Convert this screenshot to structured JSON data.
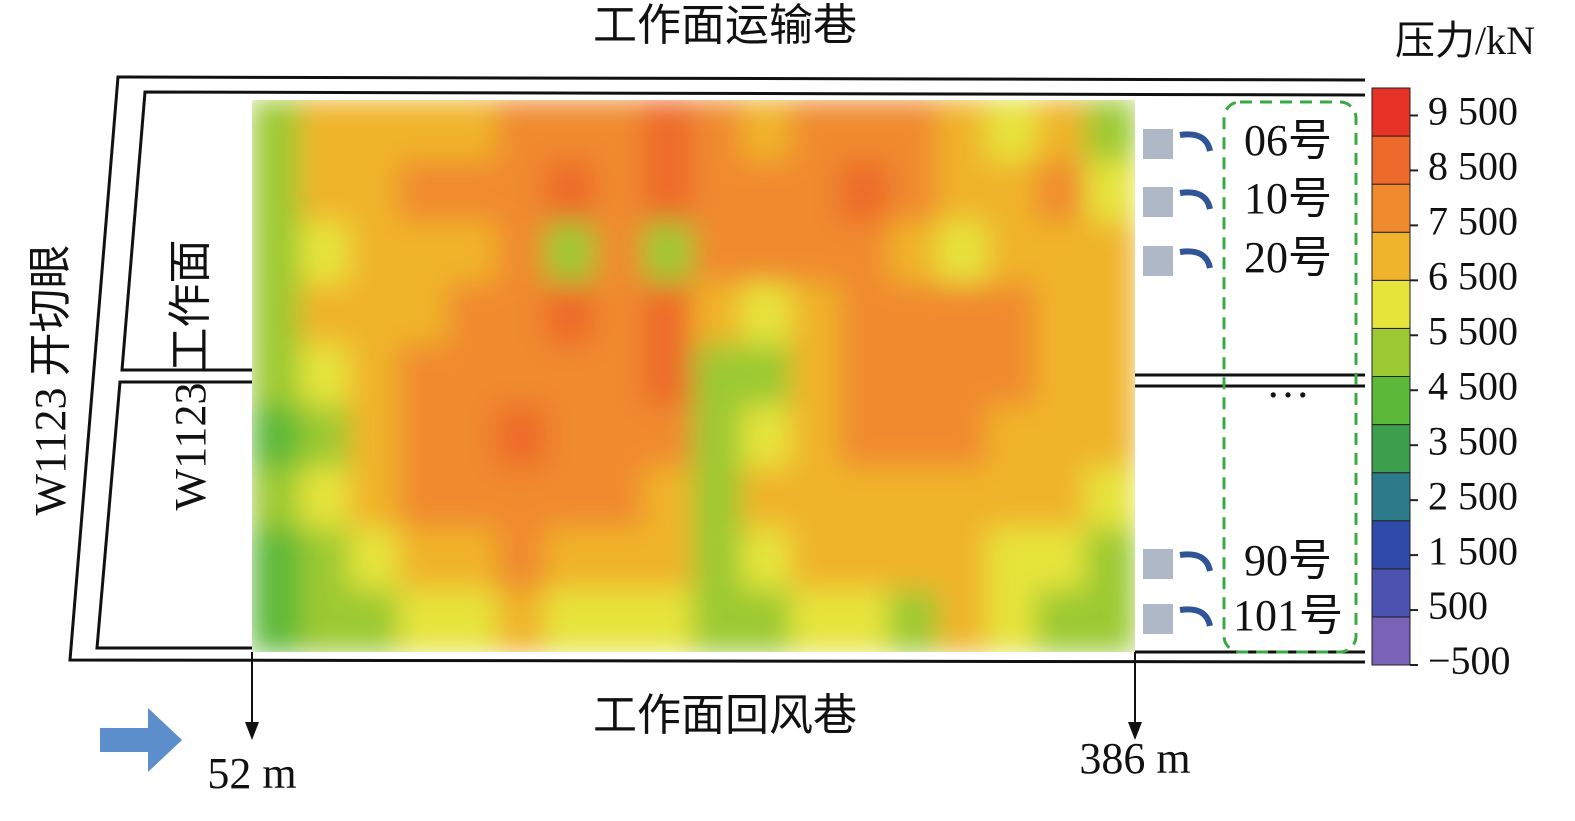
{
  "chart_data": {
    "type": "contour",
    "title": "工作面运输巷",
    "bottom_label": "工作面回风巷",
    "left_labels": [
      "W1123 开切眼",
      "W1123 工作面"
    ],
    "xlim": [
      52,
      386
    ],
    "x_markers": [
      {
        "value": 52,
        "label": "52 m"
      },
      {
        "value": 386,
        "label": "386 m"
      }
    ],
    "supports": [
      "06号",
      "10号",
      "20号",
      "…",
      "90号",
      "101号"
    ],
    "z": [
      [
        5500,
        6500,
        6500,
        7000,
        7000,
        7500,
        7500,
        8000,
        8500,
        7500,
        7000,
        7500,
        8000,
        7500,
        6500,
        6000,
        6500,
        5000
      ],
      [
        5500,
        7000,
        7000,
        7500,
        7500,
        8000,
        8500,
        8000,
        8500,
        8000,
        7500,
        7500,
        8500,
        7500,
        7000,
        6500,
        7500,
        6000
      ],
      [
        5000,
        6000,
        6500,
        6500,
        7000,
        7500,
        5500,
        7500,
        5000,
        7500,
        7500,
        7500,
        8000,
        7000,
        6000,
        6500,
        7000,
        6500
      ],
      [
        5500,
        6500,
        7000,
        7000,
        7500,
        8000,
        8500,
        7500,
        8500,
        6500,
        6000,
        7000,
        7500,
        8000,
        8000,
        7500,
        7000,
        6500
      ],
      [
        5000,
        6000,
        7000,
        7500,
        8000,
        8000,
        7500,
        7500,
        8500,
        5500,
        5000,
        6500,
        7500,
        8000,
        8000,
        7500,
        7000,
        6500
      ],
      [
        4500,
        5500,
        6500,
        7500,
        8000,
        8500,
        7500,
        7500,
        8000,
        5500,
        6000,
        7000,
        7500,
        7500,
        7500,
        7000,
        6500,
        6500
      ],
      [
        5000,
        6000,
        6500,
        7500,
        8000,
        8000,
        7500,
        7500,
        7000,
        5500,
        6500,
        7000,
        7000,
        7000,
        7000,
        6500,
        6500,
        6000
      ],
      [
        4500,
        5500,
        6000,
        6500,
        7000,
        7500,
        7000,
        7000,
        6500,
        5500,
        6000,
        6500,
        6500,
        6500,
        6500,
        6000,
        6000,
        5500
      ],
      [
        4000,
        5500,
        5500,
        6000,
        6000,
        6500,
        6000,
        6000,
        6000,
        5000,
        5500,
        6000,
        6000,
        5500,
        6500,
        6000,
        5500,
        5500
      ]
    ],
    "colorbar": {
      "label": "压力/kN",
      "lim": [
        -500,
        10000
      ],
      "ticks": [
        {
          "value": 9500,
          "label": "9 500"
        },
        {
          "value": 8500,
          "label": "8 500"
        },
        {
          "value": 7500,
          "label": "7 500"
        },
        {
          "value": 6500,
          "label": "6 500"
        },
        {
          "value": 5500,
          "label": "5 500"
        },
        {
          "value": 4500,
          "label": "4 500"
        },
        {
          "value": 3500,
          "label": "3 500"
        },
        {
          "value": 2500,
          "label": "2 500"
        },
        {
          "value": 1500,
          "label": "1 500"
        },
        500,
        {
          "value": -500,
          "label": "−500"
        }
      ],
      "colors": [
        "#7a62b8",
        "#4b52b0",
        "#2f4aa8",
        "#2d7a8a",
        "#3d9e4e",
        "#5cb838",
        "#9cc932",
        "#e6e43a",
        "#f0b42c",
        "#f08a2e",
        "#ee6a2a",
        "#e63227"
      ]
    }
  }
}
